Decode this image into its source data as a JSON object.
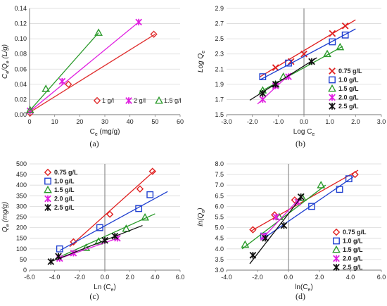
{
  "figure": {
    "panels": [
      "a",
      "b",
      "c",
      "d"
    ]
  },
  "chart_data": [
    {
      "id": "a",
      "type": "scatter",
      "panel_label": "(a)",
      "xlabel": "Ce (mg/g)",
      "xlabel_main": "C",
      "xlabel_sub": "e",
      "xlabel_rest": " (mg/g)",
      "ylabel": "Ce/Qe (L/g)",
      "xlim": [
        0,
        60
      ],
      "ylim": [
        0,
        0.14
      ],
      "xticks": [
        "0",
        "10",
        "20",
        "30",
        "40",
        "50",
        "60"
      ],
      "yticks": [
        "0.00",
        "0.02",
        "0.04",
        "0.06",
        "0.08",
        "0.10",
        "0.12",
        "0.14"
      ],
      "xtick_values": [
        0,
        10,
        20,
        30,
        40,
        50,
        60
      ],
      "ytick_values": [
        0,
        0.02,
        0.04,
        0.06,
        0.08,
        0.1,
        0.12,
        0.14
      ],
      "grid": "horizontal",
      "legend": "bottom-right-inline",
      "series": [
        {
          "name": "1 g/l",
          "marker": "diamond",
          "color": "#e03030",
          "points": [
            [
              0.2,
              0.002
            ],
            [
              15.5,
              0.04
            ],
            [
              49.5,
              0.106
            ]
          ],
          "fit": [
            [
              0,
              0.003
            ],
            [
              50,
              0.106
            ]
          ]
        },
        {
          "name": "2 g/l",
          "marker": "star",
          "color": "#e020e0",
          "points": [
            [
              0.2,
              0.005
            ],
            [
              13,
              0.044
            ],
            [
              43.5,
              0.122
            ]
          ],
          "fit": [
            [
              0,
              0.004
            ],
            [
              43.5,
              0.122
            ]
          ]
        },
        {
          "name": "1.5 g/l",
          "marker": "triangle",
          "color": "#2a9a2a",
          "points": [
            [
              0.2,
              0.006
            ],
            [
              6.5,
              0.034
            ],
            [
              27.5,
              0.108
            ]
          ],
          "fit": [
            [
              0,
              0.005
            ],
            [
              27.5,
              0.108
            ]
          ]
        }
      ]
    },
    {
      "id": "b",
      "type": "scatter",
      "panel_label": "(b)",
      "xlabel": "Log Ce",
      "xlabel_main": "Log C",
      "xlabel_sub": "e",
      "xlabel_rest": "",
      "ylabel": "Log Qe",
      "xlim": [
        -3,
        3
      ],
      "ylim": [
        1.5,
        2.9
      ],
      "xticks": [
        "-3.0",
        "-2.0",
        "-1.0",
        "0.0",
        "1.0",
        "2.0",
        "3.0"
      ],
      "yticks": [
        "1.5",
        "1.7",
        "1.9",
        "2.1",
        "2.3",
        "2.5",
        "2.7",
        "2.9"
      ],
      "xtick_values": [
        -3,
        -2,
        -1,
        0,
        1,
        2,
        3
      ],
      "ytick_values": [
        1.5,
        1.7,
        1.9,
        2.1,
        2.3,
        2.5,
        2.7,
        2.9
      ],
      "grid": "horizontal",
      "legend": "right",
      "series": [
        {
          "name": "0.75 g/L",
          "marker": "x",
          "color": "#e02020",
          "points": [
            [
              -1.1,
              2.12
            ],
            [
              -0.5,
              2.2
            ],
            [
              0.0,
              2.3
            ],
            [
              1.1,
              2.57
            ],
            [
              1.6,
              2.67
            ]
          ],
          "fit": [
            [
              -1.7,
              2.0
            ],
            [
              2.0,
              2.75
            ]
          ]
        },
        {
          "name": "1.0 g/L",
          "marker": "square",
          "color": "#2040d0",
          "points": [
            [
              -1.6,
              2.0
            ],
            [
              -0.6,
              2.18
            ],
            [
              1.1,
              2.46
            ],
            [
              1.6,
              2.55
            ]
          ],
          "fit": [
            [
              -1.7,
              1.96
            ],
            [
              2.0,
              2.63
            ]
          ]
        },
        {
          "name": "1.5 g/L",
          "marker": "triangle",
          "color": "#2a9a2a",
          "points": [
            [
              -1.6,
              1.82
            ],
            [
              -1.1,
              1.9
            ],
            [
              -0.8,
              2.0
            ],
            [
              0.9,
              2.3
            ],
            [
              1.4,
              2.39
            ]
          ],
          "fit": [
            [
              -1.7,
              1.8
            ],
            [
              1.5,
              2.4
            ]
          ]
        },
        {
          "name": "2.0 g/L",
          "marker": "star",
          "color": "#e020e0",
          "points": [
            [
              -1.6,
              1.7
            ],
            [
              -1.1,
              1.88
            ],
            [
              -0.6,
              2.0
            ]
          ],
          "fit": [
            [
              -1.8,
              1.64
            ],
            [
              -0.5,
              2.05
            ]
          ]
        },
        {
          "name": "2.5 g/L",
          "marker": "star",
          "color": "#111111",
          "points": [
            [
              -1.6,
              1.78
            ],
            [
              -1.1,
              1.9
            ],
            [
              0.3,
              2.2
            ]
          ],
          "fit": [
            [
              -2.1,
              1.69
            ],
            [
              0.5,
              2.25
            ]
          ]
        }
      ]
    },
    {
      "id": "c",
      "type": "scatter",
      "panel_label": "(c)",
      "xlabel": "Ln (Ce)",
      "xlabel_main": "Ln (C",
      "xlabel_sub": "e",
      "xlabel_rest": ")",
      "ylabel": "Qe (mg/g)",
      "xlim": [
        -6,
        6
      ],
      "ylim": [
        0,
        500
      ],
      "xticks": [
        "-6.0",
        "-4.0",
        "-2.0",
        "0.0",
        "2.0",
        "4.0",
        "6.0"
      ],
      "yticks": [
        "0",
        "50",
        "100",
        "150",
        "200",
        "250",
        "300",
        "350",
        "400",
        "450",
        "500"
      ],
      "xtick_values": [
        -6,
        -4,
        -2,
        0,
        2,
        4,
        6
      ],
      "ytick_values": [
        0,
        50,
        100,
        150,
        200,
        250,
        300,
        350,
        400,
        450,
        500
      ],
      "grid": "horizontal",
      "legend": "top-left",
      "series": [
        {
          "name": "0.75 g/L",
          "marker": "diamond",
          "color": "#e02020",
          "points": [
            [
              -2.5,
              133
            ],
            [
              0.4,
              263
            ],
            [
              2.8,
              382
            ],
            [
              3.8,
              465
            ]
          ],
          "fit": [
            [
              -2.8,
              110
            ],
            [
              4.0,
              470
            ]
          ]
        },
        {
          "name": "1.0 g/L",
          "marker": "square",
          "color": "#2040d0",
          "points": [
            [
              -3.6,
              100
            ],
            [
              -0.4,
              200
            ],
            [
              2.7,
              290
            ],
            [
              3.6,
              355
            ]
          ],
          "fit": [
            [
              -3.6,
              92
            ],
            [
              5.0,
              370
            ]
          ]
        },
        {
          "name": "1.5 g/L",
          "marker": "triangle",
          "color": "#2a9a2a",
          "points": [
            [
              -1.5,
              105
            ],
            [
              -0.5,
              135
            ],
            [
              1.7,
              195
            ],
            [
              3.2,
              248
            ]
          ],
          "fit": [
            [
              -3.5,
              65
            ],
            [
              4.0,
              265
            ]
          ]
        },
        {
          "name": "2.0 g/L",
          "marker": "star",
          "color": "#e020e0",
          "points": [
            [
              -3.6,
              55
            ],
            [
              -2.5,
              80
            ],
            [
              1.0,
              150
            ]
          ],
          "fit": [
            [
              -3.6,
              55
            ],
            [
              1.0,
              150
            ]
          ]
        },
        {
          "name": "2.5 g/L",
          "marker": "star",
          "color": "#111111",
          "points": [
            [
              -4.3,
              40
            ],
            [
              -3.7,
              65
            ],
            [
              0.0,
              140
            ],
            [
              0.8,
              160
            ]
          ],
          "fit": [
            [
              -4.3,
              40
            ],
            [
              3.0,
              210
            ]
          ]
        }
      ]
    },
    {
      "id": "d",
      "type": "scatter",
      "panel_label": "(d)",
      "xlabel": "ln(Ce)",
      "xlabel_main": "ln(C",
      "xlabel_sub": "e",
      "xlabel_rest": ")",
      "ylabel": "ln(Qe)",
      "xlim": [
        -4,
        6
      ],
      "ylim": [
        3.0,
        8.0
      ],
      "xticks": [
        "-4.0",
        "-2.0",
        "0.0",
        "2.0",
        "4.0",
        "6.0"
      ],
      "yticks": [
        "3.0",
        "3.5",
        "4.0",
        "4.5",
        "5.0",
        "5.5",
        "6.0",
        "6.5",
        "7.0",
        "7.5",
        "8.0"
      ],
      "xtick_values": [
        -4,
        -2,
        0,
        2,
        4,
        6
      ],
      "ytick_values": [
        3,
        3.5,
        4,
        4.5,
        5,
        5.5,
        6,
        6.5,
        7,
        7.5,
        8
      ],
      "grid": "horizontal",
      "legend": "bottom-right",
      "series": [
        {
          "name": "0.75 g/L",
          "marker": "diamond",
          "color": "#e02020",
          "points": [
            [
              -2.3,
              4.9
            ],
            [
              -0.9,
              5.6
            ],
            [
              0.4,
              6.3
            ],
            [
              4.3,
              7.5
            ]
          ],
          "fit": [
            [
              -2.4,
              4.85
            ],
            [
              4.5,
              7.7
            ]
          ]
        },
        {
          "name": "1.0 g/L",
          "marker": "square",
          "color": "#2040d0",
          "points": [
            [
              -1.6,
              4.6
            ],
            [
              1.5,
              6.0
            ],
            [
              3.3,
              6.8
            ],
            [
              3.9,
              7.3
            ]
          ],
          "fit": [
            [
              -1.7,
              4.45
            ],
            [
              4.2,
              7.4
            ]
          ]
        },
        {
          "name": "1.5 g/L",
          "marker": "triangle",
          "color": "#2a9a2a",
          "points": [
            [
              -2.8,
              4.2
            ],
            [
              -0.6,
              5.5
            ],
            [
              0.9,
              6.4
            ],
            [
              2.1,
              7.0
            ]
          ],
          "fit": [
            [
              -3.0,
              4.0
            ],
            [
              2.4,
              7.0
            ]
          ]
        },
        {
          "name": "2.0 g/L",
          "marker": "star",
          "color": "#e020e0",
          "points": [
            [
              -1.6,
              4.6
            ],
            [
              -0.8,
              5.5
            ],
            [
              0.6,
              6.2
            ]
          ],
          "fit": [
            [
              -1.8,
              4.4
            ],
            [
              1.0,
              6.6
            ]
          ]
        },
        {
          "name": "2.5 g/L",
          "marker": "star",
          "color": "#111111",
          "points": [
            [
              -2.3,
              3.7
            ],
            [
              -1.5,
              4.5
            ],
            [
              -0.3,
              5.1
            ],
            [
              0.8,
              6.45
            ]
          ],
          "fit": [
            [
              -2.5,
              3.3
            ],
            [
              1.0,
              6.6
            ]
          ]
        }
      ]
    }
  ]
}
